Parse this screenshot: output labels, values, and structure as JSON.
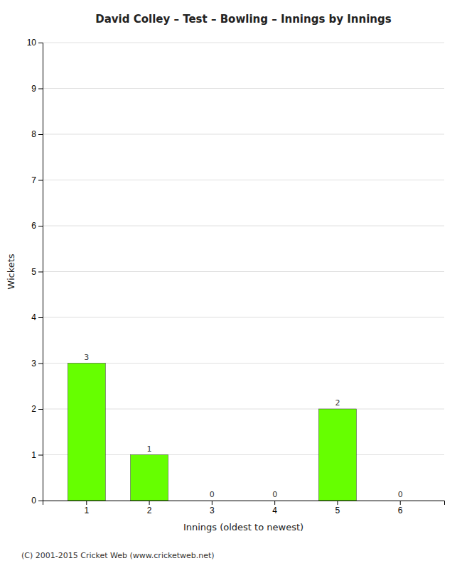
{
  "chart_data": {
    "type": "bar",
    "title": "David Colley – Test – Bowling – Innings by Innings",
    "x_label": "Innings (oldest to newest)",
    "y_label": "Wickets",
    "categories": [
      1,
      2,
      3,
      4,
      5,
      6
    ],
    "values": [
      3,
      1,
      0,
      0,
      2,
      0
    ],
    "color": "#66ff00",
    "ylim": [
      0,
      10
    ],
    "yticks": [
      0,
      1,
      2,
      3,
      4,
      5,
      6,
      7,
      8,
      9,
      10
    ],
    "grid": true,
    "data_labels": true,
    "annotations": [
      "(C) 2001-2015 Cricket Web (www.cricketweb.net)"
    ]
  }
}
